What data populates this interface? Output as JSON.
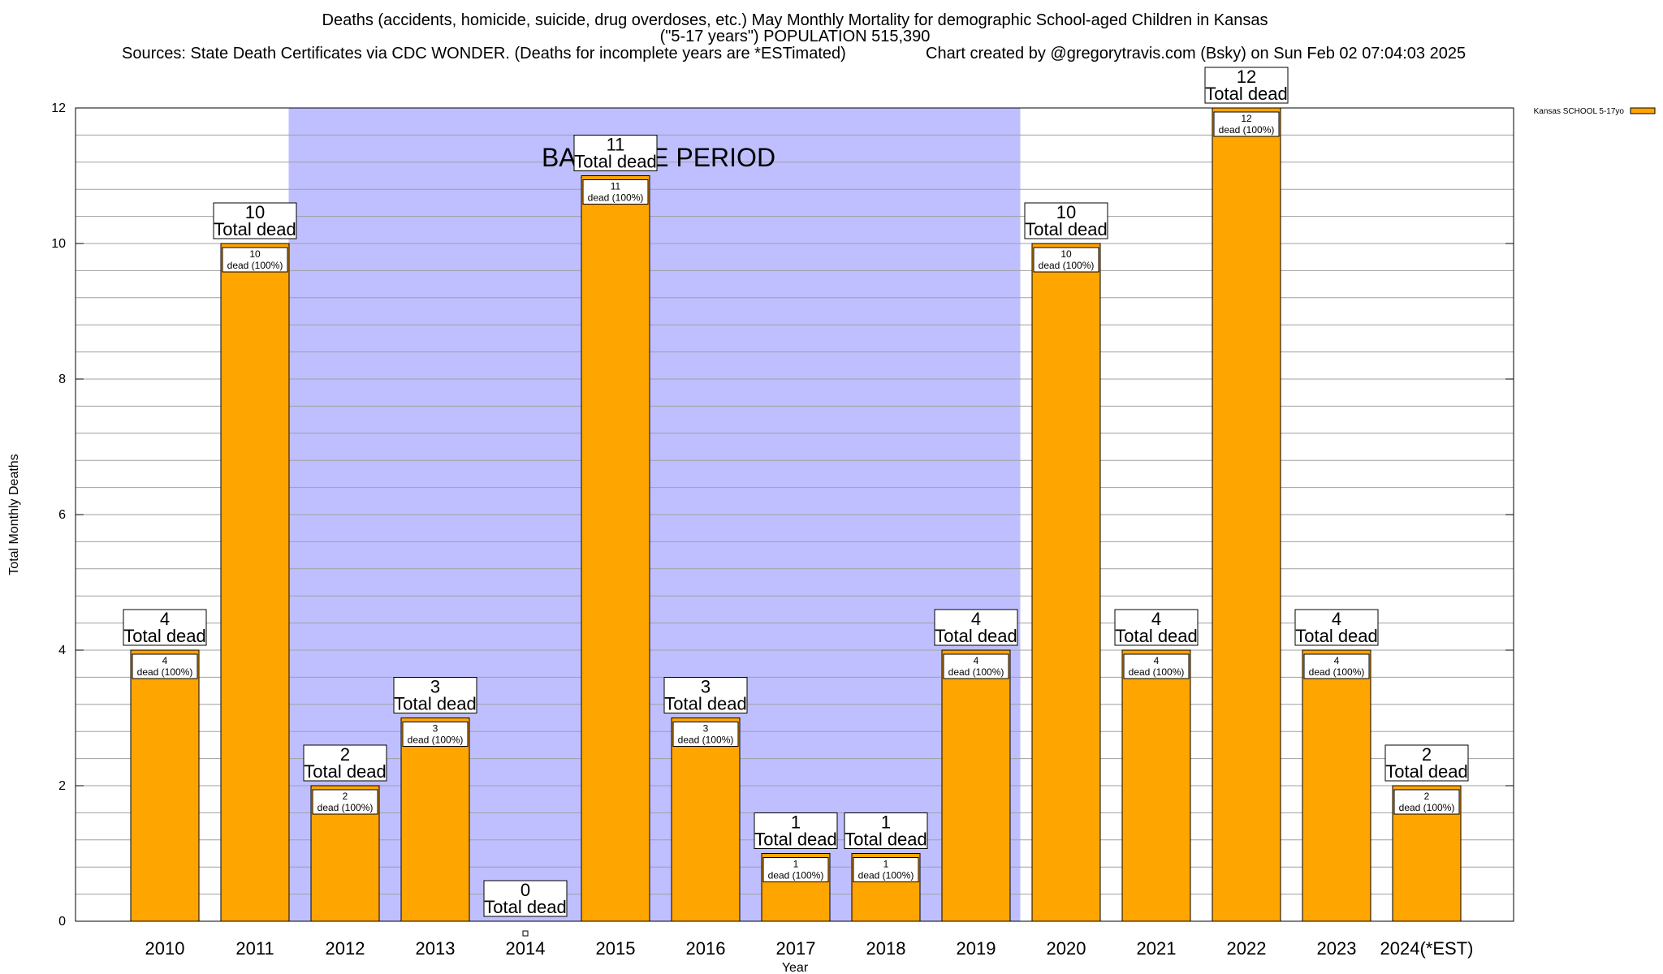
{
  "chart_data": {
    "type": "bar",
    "title_line1": "Deaths (accidents, homicide, suicide, drug overdoses, etc.) May Monthly Mortality for demographic School-aged Children in Kansas",
    "title_line2": "(\"5-17 years\") POPULATION 515,390",
    "sources": "Sources: State Death Certificates via CDC WONDER. (Deaths for incomplete years are *ESTimated)",
    "credit": "Chart created by @gregorytravis.com (Bsky) on Sun Feb 02 07:04:03 2025",
    "xlabel": "Year",
    "ylabel": "Total Monthly Deaths",
    "ylim": [
      0,
      12
    ],
    "yticks": [
      0,
      2,
      4,
      6,
      8,
      10,
      12
    ],
    "grid": true,
    "categories": [
      "2010",
      "2011",
      "2012",
      "2013",
      "2014",
      "2015",
      "2016",
      "2017",
      "2018",
      "2019",
      "2020",
      "2021",
      "2022",
      "2023",
      "2024(*EST)"
    ],
    "series": [
      {
        "name": "Kansas SCHOOL 5-17yo",
        "color": "#FFA500",
        "values": [
          4,
          10,
          2,
          3,
          0,
          11,
          3,
          1,
          1,
          4,
          10,
          4,
          12,
          4,
          2
        ]
      }
    ],
    "total_label_suffix": "Total dead",
    "inner_label_suffix": "dead (100%)",
    "baseline_period": {
      "label": "BASELINE PERIOD",
      "from": "2012",
      "to": "2019",
      "color": "#BFBFFF"
    },
    "legend_position": "top-right"
  }
}
